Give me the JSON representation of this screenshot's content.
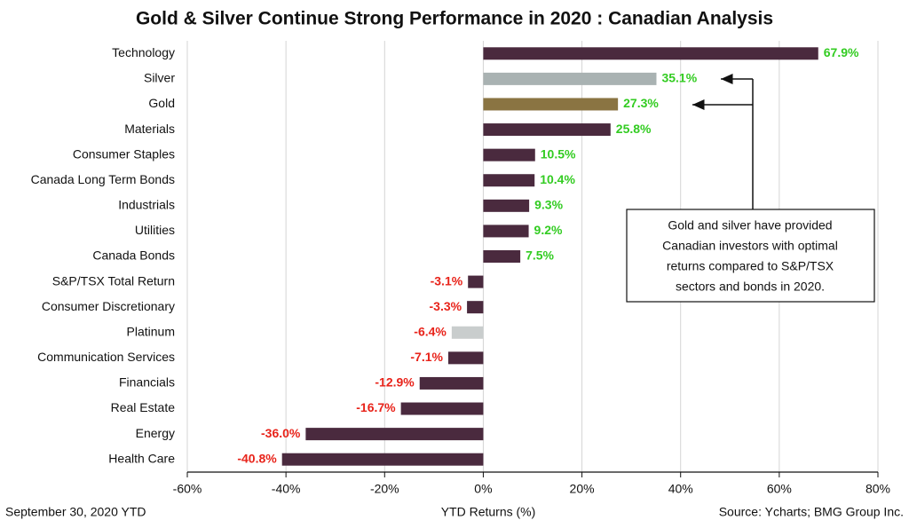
{
  "chart_data": {
    "type": "hbar",
    "title": "Gold & Silver Continue Strong Performance in 2020 : Canadian Analysis",
    "categories": [
      "Technology",
      "Silver",
      "Gold",
      "Materials",
      "Consumer Staples",
      "Canada Long Term Bonds",
      "Industrials",
      "Utilities",
      "Canada Bonds",
      "S&P/TSX Total Return",
      "Consumer Discretionary",
      "Platinum",
      "Communication Services",
      "Financials",
      "Real Estate",
      "Energy",
      "Health Care"
    ],
    "values": [
      67.9,
      35.1,
      27.3,
      25.8,
      10.5,
      10.4,
      9.3,
      9.2,
      7.5,
      -3.1,
      -3.3,
      -6.4,
      -7.1,
      -12.9,
      -16.7,
      -36.0,
      -40.8
    ],
    "value_labels": [
      "67.9%",
      "35.1%",
      "27.3%",
      "25.8%",
      "10.5%",
      "10.4%",
      "9.3%",
      "9.2%",
      "7.5%",
      "-3.1%",
      "-3.3%",
      "-6.4%",
      "-7.1%",
      "-12.9%",
      "-16.7%",
      "-36.0%",
      "-40.8%"
    ],
    "colors": [
      "#4a2a3e",
      "#a9b2b2",
      "#8a7442",
      "#4a2a3e",
      "#4a2a3e",
      "#4a2a3e",
      "#4a2a3e",
      "#4a2a3e",
      "#4a2a3e",
      "#4a2a3e",
      "#4a2a3e",
      "#c9cdcd",
      "#4a2a3e",
      "#4a2a3e",
      "#4a2a3e",
      "#4a2a3e",
      "#4a2a3e"
    ],
    "positive_label_color": "#33cc22",
    "negative_label_color": "#e8231a",
    "xlim": [
      -60,
      80
    ],
    "xticks": [
      {
        "value": -60,
        "label": "-60%"
      },
      {
        "value": -40,
        "label": "-40%"
      },
      {
        "value": -20,
        "label": "-20%"
      },
      {
        "value": 0,
        "label": "0%"
      },
      {
        "value": 20,
        "label": "20%"
      },
      {
        "value": 40,
        "label": "40%"
      },
      {
        "value": 60,
        "label": "60%"
      },
      {
        "value": 80,
        "label": "80%"
      }
    ],
    "grid": true,
    "xlabel": "YTD Returns (%)",
    "date_note": "September 30, 2020 YTD",
    "source": "Source: Ycharts; BMG Group Inc.",
    "annotation": [
      "Gold and silver have provided",
      "Canadian investors with optimal",
      "returns compared to S&P/TSX",
      "sectors and bonds in 2020."
    ]
  }
}
